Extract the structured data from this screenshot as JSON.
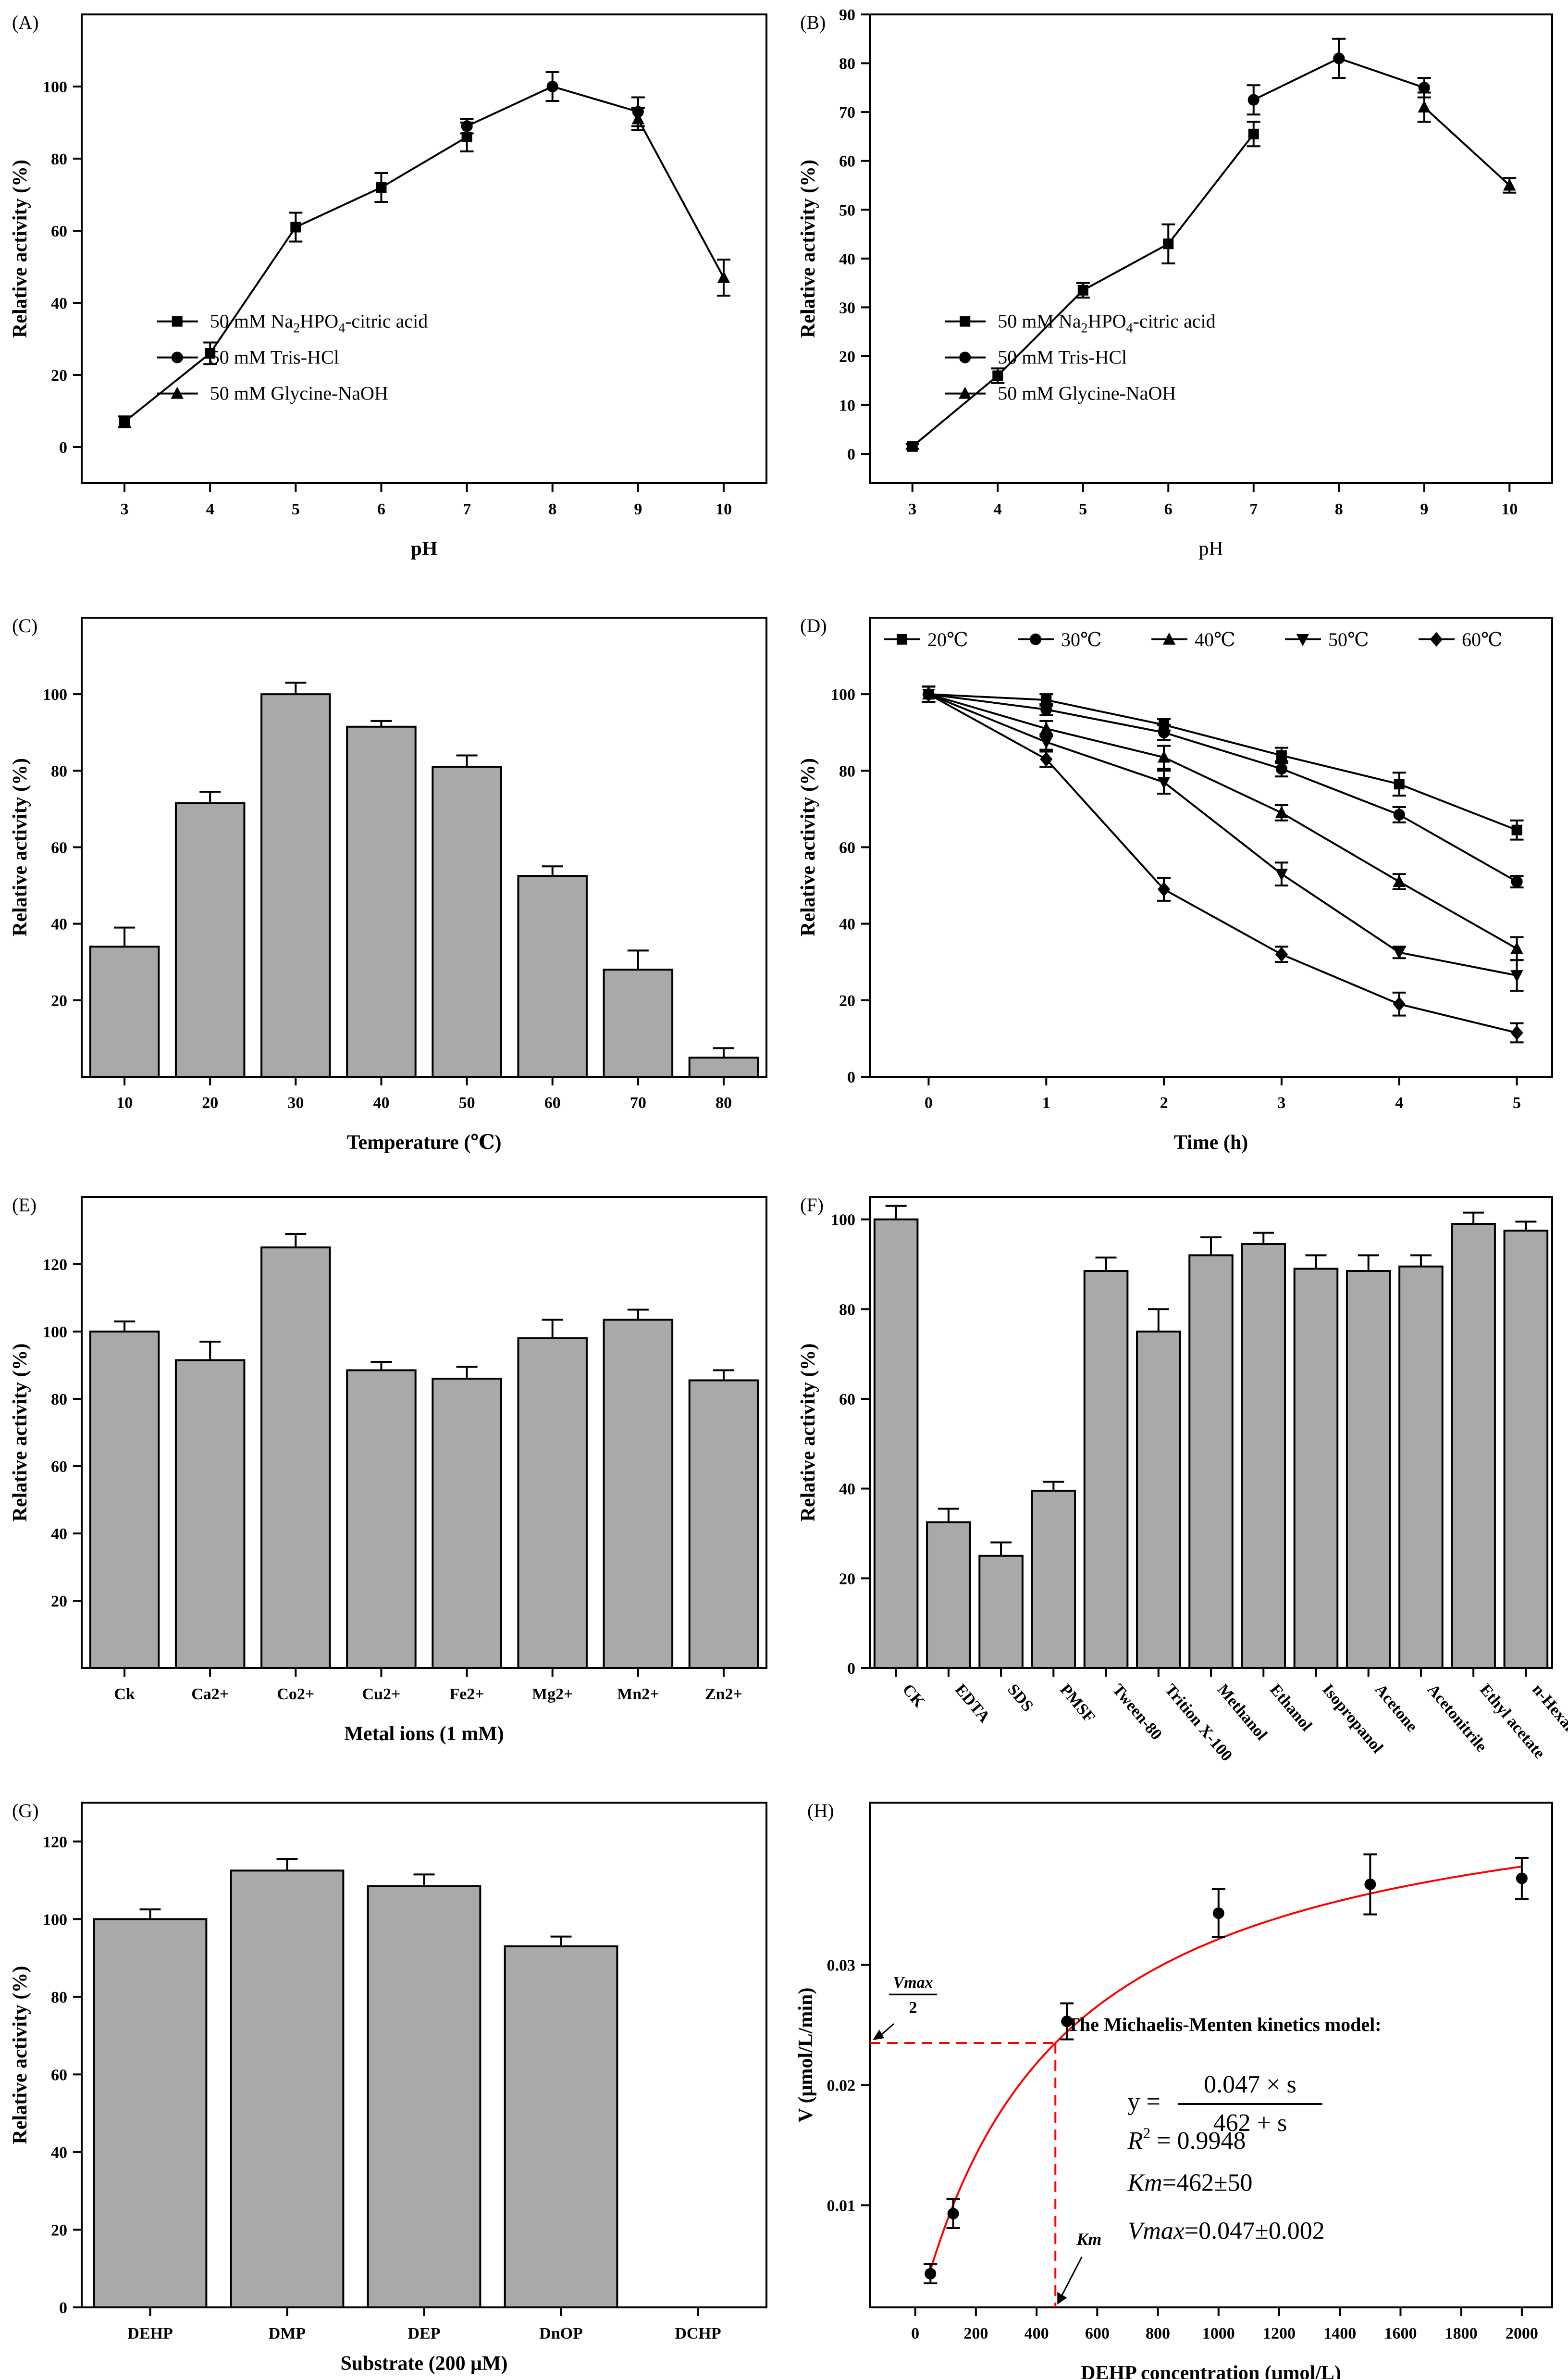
{
  "chart_data": [
    {
      "panel": "(A)",
      "type": "line",
      "xlabel": "pH",
      "ylabel": "Relative activity (%)",
      "xlim": [
        2.5,
        10.5
      ],
      "ylim": [
        -10,
        120
      ],
      "xticks": [
        3,
        4,
        5,
        6,
        7,
        8,
        9,
        10
      ],
      "yticks": [
        0,
        20,
        40,
        60,
        80,
        100
      ],
      "legend": {
        "position": "center-lower",
        "entries": [
          "50 mM Na2HPO4-citric acid",
          "50 mM Tris-HCl",
          "50 mM Glycine-NaOH"
        ]
      },
      "series": [
        {
          "name": "50 mM Na2HPO4-citric acid",
          "marker": "square",
          "x": [
            3,
            4,
            5,
            6,
            7
          ],
          "y": [
            7,
            26,
            61,
            72,
            86
          ],
          "err": [
            1.5,
            3,
            4,
            4,
            4
          ]
        },
        {
          "name": "50 mM Tris-HCl",
          "marker": "circle",
          "x": [
            7,
            8,
            9
          ],
          "y": [
            89,
            100,
            93
          ],
          "err": [
            2,
            4,
            4
          ]
        },
        {
          "name": "50 mM Glycine-NaOH",
          "marker": "triangle",
          "x": [
            9,
            10
          ],
          "y": [
            91,
            47
          ],
          "err": [
            3,
            5
          ]
        }
      ]
    },
    {
      "panel": "(B)",
      "type": "line",
      "xlabel": "pH",
      "ylabel": "Relative activity (%)",
      "xlim": [
        2.5,
        10.5
      ],
      "ylim": [
        -6,
        90
      ],
      "xticks": [
        3,
        4,
        5,
        6,
        7,
        8,
        9,
        10
      ],
      "yticks": [
        0,
        10,
        20,
        30,
        40,
        50,
        60,
        70,
        80,
        90
      ],
      "legend": {
        "position": "center-lower",
        "entries": [
          "50 mM Na2HPO4-citric acid",
          "50 mM Tris-HCl",
          "50 mM Glycine-NaOH"
        ]
      },
      "series": [
        {
          "name": "50 mM Na2HPO4-citric acid",
          "marker": "square",
          "x": [
            3,
            4,
            5,
            6,
            7
          ],
          "y": [
            1.5,
            16,
            33.5,
            43,
            65.5
          ],
          "err": [
            0.5,
            1.5,
            1.5,
            4,
            2.5
          ]
        },
        {
          "name": "50 mM Tris-HCl",
          "marker": "circle",
          "x": [
            7,
            8,
            9
          ],
          "y": [
            72.5,
            81,
            75
          ],
          "err": [
            3,
            4,
            2
          ]
        },
        {
          "name": "50 mM Glycine-NaOH",
          "marker": "triangle",
          "x": [
            9,
            10
          ],
          "y": [
            71,
            55
          ],
          "err": [
            3,
            1.5
          ]
        }
      ]
    },
    {
      "panel": "(C)",
      "type": "bar",
      "xlabel": "Temperature (℃)",
      "ylabel": "Relative activity (%)",
      "ylim": [
        0,
        120
      ],
      "yticks": [
        20,
        40,
        60,
        80,
        100
      ],
      "categories": [
        "10",
        "20",
        "30",
        "40",
        "50",
        "60",
        "70",
        "80"
      ],
      "values": [
        34,
        71.5,
        100,
        91.5,
        81,
        52.5,
        28,
        5
      ],
      "err": [
        5,
        3,
        3,
        1.5,
        3,
        2.5,
        5,
        2.5
      ]
    },
    {
      "panel": "(D)",
      "type": "line",
      "xlabel": "Time (h)",
      "ylabel": "Relative activity (%)",
      "xlim": [
        -0.5,
        5.3
      ],
      "ylim": [
        0,
        120
      ],
      "xticks": [
        0,
        1,
        2,
        3,
        4,
        5
      ],
      "yticks": [
        0,
        20,
        40,
        60,
        80,
        100
      ],
      "legend": {
        "position": "top",
        "entries": [
          "20℃",
          "30℃",
          "40℃",
          "50℃",
          "60℃"
        ]
      },
      "series": [
        {
          "name": "20℃",
          "marker": "square",
          "x": [
            0,
            1,
            2,
            3,
            4,
            5
          ],
          "y": [
            100,
            98.5,
            92,
            84,
            76.5,
            64.5
          ],
          "err": [
            2,
            1.5,
            1.5,
            2,
            3,
            2.5
          ]
        },
        {
          "name": "30℃",
          "marker": "circle",
          "x": [
            0,
            1,
            2,
            3,
            4,
            5
          ],
          "y": [
            100,
            96,
            90,
            80.5,
            68.5,
            51
          ],
          "err": [
            2,
            1.5,
            2,
            2,
            2,
            1.5
          ]
        },
        {
          "name": "40℃",
          "marker": "triangle",
          "x": [
            0,
            1,
            2,
            3,
            4,
            5
          ],
          "y": [
            100,
            91,
            83.5,
            69,
            51,
            33.5
          ],
          "err": [
            2,
            2,
            3,
            2,
            2,
            3
          ]
        },
        {
          "name": "50℃",
          "marker": "triangle-down",
          "x": [
            0,
            1,
            2,
            3,
            4,
            5
          ],
          "y": [
            100,
            87.5,
            77,
            53,
            32.5,
            26.5
          ],
          "err": [
            2,
            2,
            3,
            3,
            1.5,
            4
          ]
        },
        {
          "name": "60℃",
          "marker": "diamond",
          "x": [
            0,
            1,
            2,
            3,
            4,
            5
          ],
          "y": [
            100,
            83,
            49,
            32,
            19,
            11.5
          ],
          "err": [
            2,
            2,
            3,
            2,
            3,
            2.5
          ]
        }
      ]
    },
    {
      "panel": "(E)",
      "type": "bar",
      "xlabel": "Metal ions (1 mM)",
      "ylabel": "Relative activity (%)",
      "ylim": [
        0,
        140
      ],
      "yticks": [
        20,
        40,
        60,
        80,
        100,
        120
      ],
      "categories": [
        "Ck",
        "Ca2+",
        "Co2+",
        "Cu2+",
        "Fe2+",
        "Mg2+",
        "Mn2+",
        "Zn2+"
      ],
      "values": [
        100,
        91.5,
        125,
        88.5,
        86,
        98,
        103.5,
        85.5
      ],
      "err": [
        3,
        5.5,
        4,
        2.5,
        3.5,
        5.5,
        3,
        3
      ]
    },
    {
      "panel": "(F)",
      "type": "bar",
      "ylabel": "Relative activity (%)",
      "ylim": [
        0,
        105
      ],
      "yticks": [
        0,
        20,
        40,
        60,
        80,
        100
      ],
      "categories": [
        "CK",
        "EDTA",
        "SDS",
        "PMSF",
        "Tween-80",
        "Trition X-100",
        "Methanol",
        "Ethanol",
        "Isopropanol",
        "Acetone",
        "Acetonitrile",
        "Ethyl acetate",
        "n-Hexane"
      ],
      "values": [
        100,
        32.5,
        25,
        39.5,
        88.5,
        75,
        92,
        94.5,
        89,
        88.5,
        89.5,
        99,
        97.5
      ],
      "err": [
        3,
        3,
        3,
        2,
        3,
        5,
        4,
        2.5,
        3,
        3.5,
        2.5,
        2.5,
        2
      ]
    },
    {
      "panel": "(G)",
      "type": "bar",
      "xlabel": "Substrate (200 μM)",
      "ylabel": "Relative activity (%)",
      "ylim": [
        0,
        130
      ],
      "yticks": [
        0,
        20,
        40,
        60,
        80,
        100,
        120
      ],
      "categories": [
        "DEHP",
        "DMP",
        "DEP",
        "DnOP",
        "DCHP"
      ],
      "values": [
        100,
        112.5,
        108.5,
        93,
        0
      ],
      "err": [
        2.5,
        3,
        3,
        2.5,
        0
      ]
    },
    {
      "panel": "(H)",
      "type": "scatter",
      "xlabel": "DEHP concentration (μmol/L)",
      "ylabel": "V (μmol/L/min)",
      "xlim": [
        -150,
        2100
      ],
      "ylim": [
        0.0015,
        0.0435
      ],
      "xticks": [
        0,
        200,
        400,
        600,
        800,
        1000,
        1200,
        1400,
        1600,
        1800,
        2000
      ],
      "yticks": [
        0.01,
        0.02,
        0.03
      ],
      "points": {
        "x": [
          50,
          125,
          500,
          1000,
          1500,
          2000
        ],
        "y": [
          0.0043,
          0.0093,
          0.0253,
          0.0343,
          0.0367,
          0.0372
        ],
        "err": [
          0.0008,
          0.0012,
          0.0015,
          0.002,
          0.0025,
          0.0017
        ]
      },
      "fit": {
        "vmax": 0.047,
        "km": 462,
        "x_range": [
          50,
          2000
        ]
      },
      "annotations": {
        "vmax_num": "Vmax",
        "vmax_den": "2",
        "km_label": "Km",
        "model_title": "The Michaelis-Menten kinetics model:",
        "eq_y": "y =",
        "eq_num": "0.047 × s",
        "eq_den": "462 + s",
        "r2_label": "R",
        "r2_value": " = 0.9948",
        "km_name": "Km",
        "km_value": "=462±50",
        "vmax_name": "Vmax",
        "vmax_value": "=0.047±0.002"
      }
    }
  ]
}
